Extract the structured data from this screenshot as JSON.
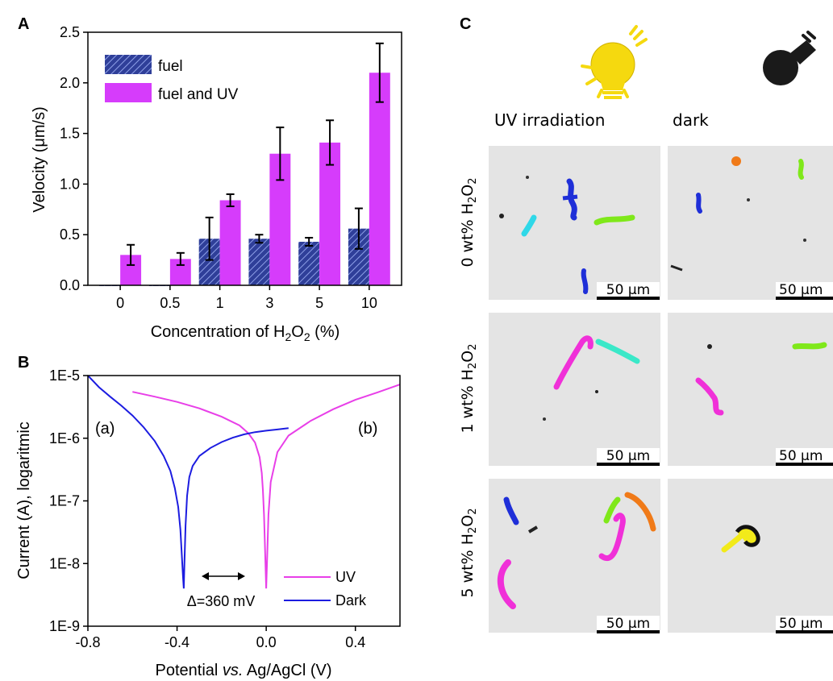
{
  "panels": {
    "a": "A",
    "b": "B",
    "c": "C"
  },
  "chart_data": [
    {
      "type": "bar",
      "categories": [
        "0",
        "0.5",
        "1",
        "3",
        "5",
        "10"
      ],
      "series": [
        {
          "name": "fuel",
          "values": [
            0.0,
            0.0,
            0.46,
            0.46,
            0.43,
            0.56
          ],
          "errors": [
            0.0,
            0.0,
            0.21,
            0.04,
            0.04,
            0.2
          ],
          "color": "#2f3f99",
          "pattern": "hatch"
        },
        {
          "name": "fuel and UV",
          "values": [
            0.3,
            0.26,
            0.84,
            1.3,
            1.41,
            2.1
          ],
          "errors": [
            0.1,
            0.06,
            0.06,
            0.26,
            0.22,
            0.29
          ],
          "color": "#d63cfb"
        }
      ],
      "xlabel_pre": "Concentration of H",
      "xlabel_sub1": "2",
      "xlabel_mid": "O",
      "xlabel_sub2": "2",
      "xlabel_post": " (%)",
      "ylabel_pre": "Velocity (",
      "ylabel_mu": "μm/s)",
      "ylim": [
        0,
        2.5
      ],
      "yticks": [
        "0.0",
        "0.5",
        "1.0",
        "1.5",
        "2.0",
        "2.5"
      ],
      "ytick_values": [
        0,
        0.5,
        1.0,
        1.5,
        2.0,
        2.5
      ],
      "legend_position": "top-left"
    },
    {
      "type": "line",
      "yscale": "log",
      "xlim": [
        -0.8,
        0.6
      ],
      "ylim": [
        1e-09,
        1e-05
      ],
      "xticks": [
        "-0.8",
        "-0.4",
        "0.0",
        "0.4"
      ],
      "xtick_values": [
        -0.8,
        -0.4,
        0.0,
        0.4
      ],
      "yticks": [
        "1E-9",
        "1E-8",
        "1E-7",
        "1E-6",
        "1E-5"
      ],
      "ytick_values": [
        1e-09,
        1e-08,
        1e-07,
        1e-06,
        1e-05
      ],
      "xlabel_pre": "Potential ",
      "xlabel_italic": "vs.",
      "xlabel_post": " Ag/AgCl (V)",
      "ylabel": "Current (A), logaritmic",
      "annotations": {
        "left": "(a)",
        "right": "(b)",
        "delta": "Δ=360 mV"
      },
      "series": [
        {
          "name": "UV",
          "color": "#e83fe8",
          "x": [
            -0.6,
            -0.5,
            -0.4,
            -0.3,
            -0.2,
            -0.12,
            -0.08,
            -0.05,
            -0.03,
            -0.02,
            -0.015,
            -0.01,
            -0.005,
            0.0,
            0.005,
            0.01,
            0.02,
            0.05,
            0.1,
            0.2,
            0.3,
            0.4,
            0.5,
            0.6
          ],
          "y": [
            5.5e-06,
            4.6e-06,
            3.8e-06,
            3e-06,
            2.2e-06,
            1.6e-06,
            1.2e-06,
            8.5e-07,
            5e-07,
            2.8e-07,
            1.5e-07,
            6e-08,
            1.5e-08,
            4e-09,
            1.5e-08,
            6e-08,
            2e-07,
            6e-07,
            1.1e-06,
            1.9e-06,
            2.9e-06,
            4.1e-06,
            5.4e-06,
            7.2e-06
          ]
        },
        {
          "name": "Dark",
          "color": "#1c1ce0",
          "x": [
            -0.8,
            -0.75,
            -0.7,
            -0.65,
            -0.6,
            -0.55,
            -0.5,
            -0.46,
            -0.43,
            -0.41,
            -0.395,
            -0.385,
            -0.378,
            -0.373,
            -0.37,
            -0.367,
            -0.362,
            -0.355,
            -0.345,
            -0.33,
            -0.3,
            -0.25,
            -0.2,
            -0.15,
            -0.1,
            -0.05,
            0.0,
            0.05,
            0.1
          ],
          "y": [
            1e-05,
            6.5e-06,
            4.6e-06,
            3.3e-06,
            2.3e-06,
            1.5e-06,
            9e-07,
            5.2e-07,
            3e-07,
            1.6e-07,
            8e-08,
            3.5e-08,
            1.2e-08,
            6e-09,
            4e-09,
            1e-08,
            4e-08,
            1.2e-07,
            2.4e-07,
            3.6e-07,
            5.2e-07,
            7e-07,
            8.7e-07,
            1.02e-06,
            1.15e-06,
            1.25e-06,
            1.32e-06,
            1.38e-06,
            1.45e-06
          ]
        }
      ],
      "legend_position": "bottom-right"
    }
  ],
  "panel_c": {
    "column_headers": [
      "UV irradiation",
      "dark"
    ],
    "row_labels": [
      {
        "pre": "0 wt% H",
        "sub": "2",
        "mid": "O",
        "sub2": "2"
      },
      {
        "pre": "1 wt% H",
        "sub": "2",
        "mid": "O",
        "sub2": "2"
      },
      {
        "pre": "5 wt% H",
        "sub": "2",
        "mid": "O",
        "sub2": "2"
      }
    ],
    "scale_bar": "50 μm",
    "icons": [
      "lit-bulb-icon",
      "dark-bulb-icon"
    ],
    "colors": {
      "bulb_lit": "#f5d90f",
      "bulb_dark": "#1a1a1a",
      "image_bg": "#e3e3e3"
    }
  }
}
